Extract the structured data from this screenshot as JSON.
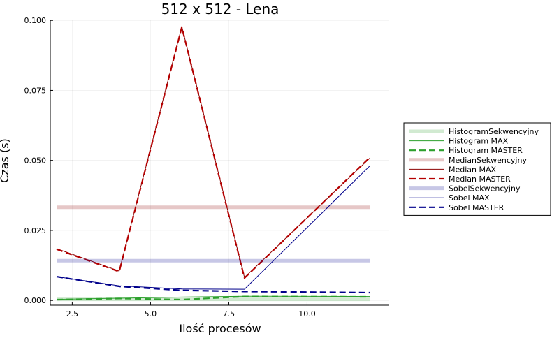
{
  "chart_data": {
    "type": "line",
    "title": "512 x 512 - Lena",
    "xlabel": "Ilość procesów",
    "ylabel": "Czas (s)",
    "xlim": [
      1.8,
      12.6
    ],
    "ylim": [
      -0.0017,
      0.1003
    ],
    "x_ticks": [
      2.5,
      5.0,
      7.5,
      10.0
    ],
    "x_tick_labels": [
      "2.5",
      "5.0",
      "7.5",
      "10.0"
    ],
    "y_ticks": [
      0.0,
      0.025,
      0.05,
      0.075,
      0.1
    ],
    "y_tick_labels": [
      "0.000",
      "0.025",
      "0.050",
      "0.075",
      "0.100"
    ],
    "grid": true,
    "legend_position": "outer-right",
    "series": [
      {
        "name": "HistogramSekwencyjny",
        "style": "thick-faded",
        "color": "#2ca02c",
        "x": [
          2,
          12
        ],
        "y": [
          0.0004,
          0.0004
        ]
      },
      {
        "name": "Histogram MAX",
        "style": "thin",
        "color": "#2ca02c",
        "x": [
          2,
          4,
          6,
          8,
          12
        ],
        "y": [
          0.0004,
          0.0008,
          0.0012,
          0.0015,
          0.0014
        ]
      },
      {
        "name": "Histogram MASTER",
        "style": "dashed",
        "color": "#2ca02c",
        "x": [
          2,
          4,
          6,
          8,
          12
        ],
        "y": [
          0.0003,
          0.0007,
          0.0003,
          0.0014,
          0.0013
        ]
      },
      {
        "name": "MedianSekwencyjny",
        "style": "thick-faded",
        "color": "#8b0000",
        "x": [
          2,
          12
        ],
        "y": [
          0.0333,
          0.0333
        ]
      },
      {
        "name": "Median MAX",
        "style": "thin",
        "color": "#8b0000",
        "x": [
          2,
          4,
          6,
          8,
          12
        ],
        "y": [
          0.0185,
          0.0105,
          0.0978,
          0.0082,
          0.0508
        ]
      },
      {
        "name": "Median MASTER",
        "style": "dashed",
        "color": "#b40000",
        "x": [
          2,
          4,
          6,
          8,
          12
        ],
        "y": [
          0.0183,
          0.0103,
          0.0976,
          0.008,
          0.051
        ]
      },
      {
        "name": "SobelSekwencyjny",
        "style": "thick-faded",
        "color": "#00008b",
        "x": [
          2,
          12
        ],
        "y": [
          0.0142,
          0.0142
        ]
      },
      {
        "name": "Sobel MAX",
        "style": "thin",
        "color": "#00008b",
        "x": [
          2,
          4,
          6,
          8,
          12
        ],
        "y": [
          0.0085,
          0.0052,
          0.0041,
          0.004,
          0.048
        ]
      },
      {
        "name": "Sobel MASTER",
        "style": "dashed",
        "color": "#00008b",
        "x": [
          2,
          4,
          6,
          8,
          12
        ],
        "y": [
          0.0085,
          0.005,
          0.0036,
          0.0032,
          0.0028
        ]
      }
    ]
  }
}
